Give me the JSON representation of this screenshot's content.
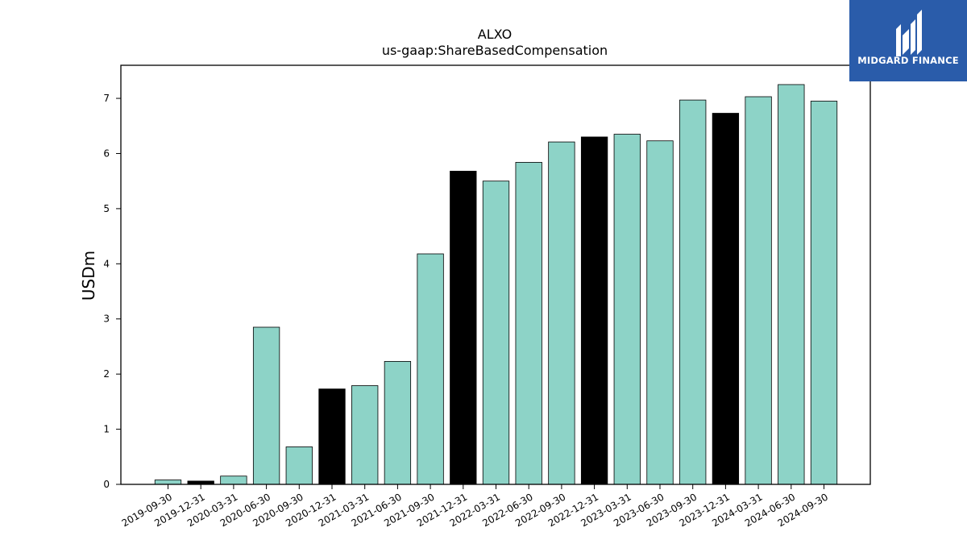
{
  "chart_data": {
    "type": "bar",
    "title": "ALXO",
    "subtitle": "us-gaap:ShareBasedCompensation",
    "ylabel": "USDm",
    "xlabel": "",
    "ylim": [
      0,
      7.6
    ],
    "yticks": [
      0,
      1,
      2,
      3,
      4,
      5,
      6,
      7
    ],
    "categories": [
      "2019-09-30",
      "2019-12-31",
      "2020-03-31",
      "2020-06-30",
      "2020-09-30",
      "2020-12-31",
      "2021-03-31",
      "2021-06-30",
      "2021-09-30",
      "2021-12-31",
      "2022-03-31",
      "2022-06-30",
      "2022-09-30",
      "2022-12-31",
      "2023-03-31",
      "2023-06-30",
      "2023-09-30",
      "2023-12-31",
      "2024-03-31",
      "2024-06-30",
      "2024-09-30"
    ],
    "values": [
      0.08,
      0.06,
      0.15,
      2.85,
      0.68,
      1.73,
      1.79,
      2.23,
      4.18,
      5.68,
      5.5,
      5.84,
      6.21,
      6.3,
      6.35,
      6.23,
      6.97,
      6.73,
      7.03,
      7.25,
      6.95
    ],
    "colors": {
      "quarter": "#8dd3c7",
      "year_end": "#000000",
      "edge": "#000000"
    },
    "year_end_flags": [
      false,
      true,
      false,
      false,
      false,
      true,
      false,
      false,
      false,
      true,
      false,
      false,
      false,
      true,
      false,
      false,
      false,
      true,
      false,
      false,
      false
    ],
    "grid": false
  },
  "logo": {
    "text": "MIDGARD FINANCE",
    "background": "#2a5caa"
  }
}
